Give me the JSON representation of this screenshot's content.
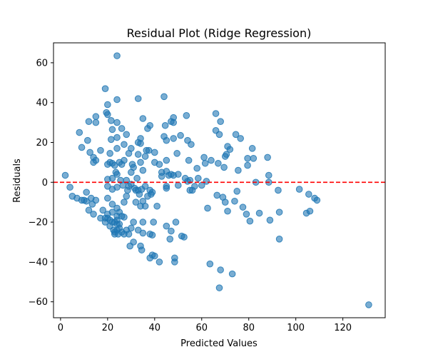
{
  "chart_data": {
    "type": "scatter",
    "title": "Residual Plot (Ridge Regression)",
    "xlabel": "Predicted Values",
    "ylabel": "Residuals",
    "xlim": [
      -3,
      138
    ],
    "ylim": [
      -68,
      70
    ],
    "x_ticks": [
      0,
      20,
      40,
      60,
      80,
      100,
      120
    ],
    "y_ticks": [
      -60,
      -40,
      -20,
      0,
      20,
      40,
      60
    ],
    "grid": false,
    "point_color": "#1f77b4",
    "point_opacity": 0.6,
    "reference_line": {
      "y": 0,
      "color": "#ff0000",
      "style": "dashed"
    },
    "points": [
      [
        2,
        3.5
      ],
      [
        4,
        -2.5
      ],
      [
        5,
        -7
      ],
      [
        7,
        -8
      ],
      [
        8,
        25
      ],
      [
        9,
        17.5
      ],
      [
        9,
        -9
      ],
      [
        10,
        -9
      ],
      [
        11,
        -9.5
      ],
      [
        11,
        -5
      ],
      [
        11.5,
        21
      ],
      [
        12,
        -14
      ],
      [
        12,
        30.5
      ],
      [
        12.5,
        15
      ],
      [
        13,
        -8
      ],
      [
        13.5,
        -11
      ],
      [
        14,
        12.5
      ],
      [
        14,
        10
      ],
      [
        14,
        -16
      ],
      [
        15,
        33
      ],
      [
        15,
        30
      ],
      [
        15,
        11
      ],
      [
        15,
        -9
      ],
      [
        17,
        16
      ],
      [
        17,
        -18
      ],
      [
        18,
        -14
      ],
      [
        19,
        -20
      ],
      [
        19,
        -18
      ],
      [
        19,
        47
      ],
      [
        19.5,
        35
      ],
      [
        20,
        39
      ],
      [
        20,
        34
      ],
      [
        20,
        9
      ],
      [
        20,
        1.5
      ],
      [
        20,
        -2
      ],
      [
        20,
        -8
      ],
      [
        20,
        -16
      ],
      [
        20,
        -18
      ],
      [
        21,
        14.5
      ],
      [
        21,
        10
      ],
      [
        21,
        -19
      ],
      [
        21,
        -22
      ],
      [
        21.5,
        31
      ],
      [
        21.5,
        21.5
      ],
      [
        22,
        26.5
      ],
      [
        22,
        9.5
      ],
      [
        22,
        2
      ],
      [
        22,
        -3.5
      ],
      [
        22,
        -11
      ],
      [
        22,
        -15
      ],
      [
        22,
        -20
      ],
      [
        22.5,
        -24
      ],
      [
        23,
        8.5
      ],
      [
        23,
        -25
      ],
      [
        23,
        -20
      ],
      [
        23,
        -26
      ],
      [
        23.5,
        5
      ],
      [
        24,
        63.5
      ],
      [
        24,
        41.5
      ],
      [
        24,
        30
      ],
      [
        24,
        22.5
      ],
      [
        24,
        17
      ],
      [
        24,
        4
      ],
      [
        24,
        -2.5
      ],
      [
        24,
        -13
      ],
      [
        24,
        -17
      ],
      [
        24,
        -19
      ],
      [
        24,
        -21
      ],
      [
        24,
        -24
      ],
      [
        24.5,
        -26
      ],
      [
        25,
        10
      ],
      [
        25,
        -15
      ],
      [
        25,
        -21
      ],
      [
        25,
        -23
      ],
      [
        25.5,
        1
      ],
      [
        26,
        27
      ],
      [
        26,
        9
      ],
      [
        26,
        -17
      ],
      [
        26,
        -25
      ],
      [
        26.5,
        -1.5
      ],
      [
        27,
        19
      ],
      [
        27,
        11
      ],
      [
        27,
        -10
      ],
      [
        27,
        -17.5
      ],
      [
        27,
        -26
      ],
      [
        28,
        24
      ],
      [
        28,
        1
      ],
      [
        28,
        -7
      ],
      [
        28,
        -24
      ],
      [
        28.5,
        -4
      ],
      [
        29,
        14.5
      ],
      [
        29,
        -2
      ],
      [
        29,
        -26
      ],
      [
        29.5,
        -32
      ],
      [
        30,
        17
      ],
      [
        30,
        5
      ],
      [
        30,
        -1
      ],
      [
        30,
        -23
      ],
      [
        30.5,
        9
      ],
      [
        31,
        7.5
      ],
      [
        31,
        -20
      ],
      [
        31,
        -30
      ],
      [
        31.5,
        -3
      ],
      [
        32,
        -4
      ],
      [
        32,
        -10
      ],
      [
        32.5,
        2
      ],
      [
        33,
        42
      ],
      [
        33,
        20
      ],
      [
        33,
        14
      ],
      [
        33,
        -4
      ],
      [
        33,
        -24
      ],
      [
        33.5,
        -6
      ],
      [
        34,
        22
      ],
      [
        34,
        19.5
      ],
      [
        34,
        10
      ],
      [
        34,
        -32
      ],
      [
        34,
        -12
      ],
      [
        34.5,
        -3.5
      ],
      [
        34.5,
        -34
      ],
      [
        35,
        32
      ],
      [
        35,
        6
      ],
      [
        35,
        -9.5
      ],
      [
        35,
        -20
      ],
      [
        35,
        -25.5
      ],
      [
        36,
        13
      ],
      [
        36,
        -12
      ],
      [
        36,
        -2
      ],
      [
        36.5,
        16
      ],
      [
        37,
        27
      ],
      [
        37,
        -7
      ],
      [
        37.5,
        16
      ],
      [
        38,
        28.5
      ],
      [
        38,
        -4
      ],
      [
        38,
        -26
      ],
      [
        38,
        -38
      ],
      [
        38.5,
        -6
      ],
      [
        39,
        -5
      ],
      [
        39,
        -26.5
      ],
      [
        39,
        -36.5
      ],
      [
        39.5,
        -20
      ],
      [
        40,
        15
      ],
      [
        40,
        10
      ],
      [
        40,
        -37
      ],
      [
        41,
        -12
      ],
      [
        42,
        -40
      ],
      [
        42,
        9
      ],
      [
        43,
        3
      ],
      [
        43,
        5
      ],
      [
        44,
        23
      ],
      [
        44,
        43
      ],
      [
        44.5,
        28.5
      ],
      [
        45,
        21
      ],
      [
        45,
        11
      ],
      [
        45,
        5.5
      ],
      [
        45,
        -2
      ],
      [
        45,
        -3
      ],
      [
        45,
        -22
      ],
      [
        46,
        3.5
      ],
      [
        46.5,
        -28.5
      ],
      [
        47,
        30.5
      ],
      [
        47,
        4
      ],
      [
        47,
        -24.5
      ],
      [
        48,
        32.5
      ],
      [
        48,
        22
      ],
      [
        48,
        3.5
      ],
      [
        48,
        30
      ],
      [
        48.5,
        -38
      ],
      [
        48.5,
        -40
      ],
      [
        49,
        -20
      ],
      [
        49.5,
        14.5
      ],
      [
        50,
        -1.5
      ],
      [
        50,
        4
      ],
      [
        51,
        23.5
      ],
      [
        51.5,
        -27
      ],
      [
        52.5,
        -27.5
      ],
      [
        53,
        2
      ],
      [
        53.5,
        33.5
      ],
      [
        54,
        21
      ],
      [
        54,
        0.5
      ],
      [
        54.5,
        11
      ],
      [
        55,
        1
      ],
      [
        55,
        -4
      ],
      [
        55.5,
        19
      ],
      [
        56,
        -4
      ],
      [
        57,
        -2
      ],
      [
        58,
        7
      ],
      [
        58.5,
        2
      ],
      [
        60,
        -1.5
      ],
      [
        61,
        12.5
      ],
      [
        61.5,
        9.5
      ],
      [
        62,
        0.5
      ],
      [
        62.5,
        -13
      ],
      [
        63.5,
        -41
      ],
      [
        64,
        11
      ],
      [
        66,
        34.5
      ],
      [
        66,
        26
      ],
      [
        66.5,
        -6.5
      ],
      [
        67,
        9.5
      ],
      [
        67.5,
        -53
      ],
      [
        67.5,
        24
      ],
      [
        68,
        30.5
      ],
      [
        68,
        -44
      ],
      [
        69,
        -7.5
      ],
      [
        69.5,
        7.5
      ],
      [
        70,
        13
      ],
      [
        70,
        -10
      ],
      [
        70.5,
        14
      ],
      [
        71,
        -14.5
      ],
      [
        71,
        18
      ],
      [
        72,
        16.5
      ],
      [
        73,
        -46
      ],
      [
        74,
        -9.5
      ],
      [
        74.5,
        24
      ],
      [
        75,
        -4.5
      ],
      [
        75.5,
        6
      ],
      [
        76.5,
        22
      ],
      [
        77.5,
        -12.5
      ],
      [
        79,
        -16
      ],
      [
        79.5,
        8.5
      ],
      [
        79.5,
        12
      ],
      [
        80.5,
        -19.5
      ],
      [
        81.5,
        17
      ],
      [
        82,
        12
      ],
      [
        83,
        0
      ],
      [
        84.5,
        -15.5
      ],
      [
        88,
        12.5
      ],
      [
        88.5,
        3.5
      ],
      [
        88.5,
        0
      ],
      [
        89,
        -19
      ],
      [
        92.5,
        -4
      ],
      [
        93,
        -15
      ],
      [
        93,
        -28.5
      ],
      [
        101.5,
        -3.5
      ],
      [
        104.5,
        -15.5
      ],
      [
        105.5,
        -6
      ],
      [
        106,
        -14.5
      ],
      [
        108,
        -8
      ],
      [
        109,
        -9
      ],
      [
        131,
        -61.5
      ]
    ]
  }
}
